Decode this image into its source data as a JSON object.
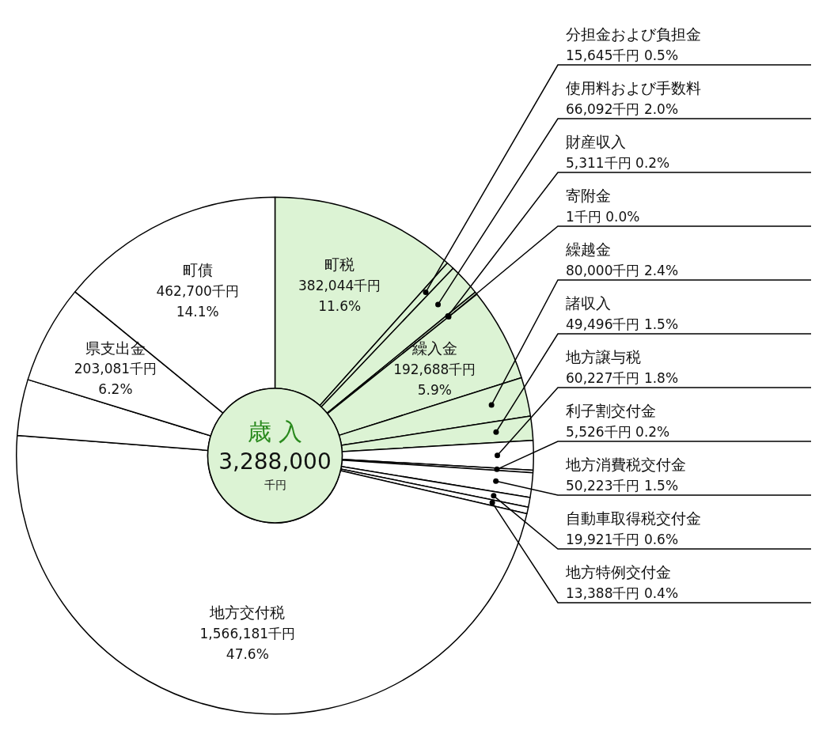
{
  "chart_data": {
    "type": "donut",
    "categories": [
      "町税",
      "分担金および負担金",
      "使用料および手数料",
      "財産収入",
      "寄附金",
      "繰入金",
      "繰越金",
      "諸収入",
      "地方譲与税",
      "利子割交付金",
      "地方消費税交付金",
      "自動車取得税交付金",
      "地方特例交付金",
      "地方交付税",
      null,
      null,
      "県支出金",
      "町債"
    ],
    "values": [
      382044,
      15645,
      66092,
      5311,
      1,
      192688,
      80000,
      49496,
      60227,
      5526,
      50223,
      19921,
      13388,
      1566181,
      null,
      115476,
      203081,
      462700
    ],
    "colors": [
      "#dcf3d4",
      "#dcf3d4",
      "#dcf3d4",
      "#dcf3d4",
      "#dcf3d4",
      "#dcf3d4",
      "#dcf3d4",
      "#dcf3d4",
      "#ffffff",
      "#ffffff",
      "#ffffff",
      "#ffffff",
      "#ffffff",
      "#ffffff",
      "#ffffff",
      "#ffffff",
      "#ffffff",
      "#ffffff"
    ],
    "value_labels": [
      "382,044千円 11.6%",
      "15,645千円 0.5%",
      "66,092千円 2.0%",
      "5,311千円 0.2%",
      "1千円 0.0%",
      "192,688千円 5.9%",
      "80,000千円 2.4%",
      "49,496千円 1.5%",
      "60,227千円 1.8%",
      "5,526千円 0.2%",
      "50,223千円 1.5%",
      "19,921千円 0.6%",
      "13,388千円 0.4%",
      "1,566,181千円 47.6%",
      null,
      null,
      "203,081千円 6.2%",
      "462,700千円 14.1%"
    ],
    "annotations": [
      "歳 入",
      "3,288,000",
      "千円"
    ],
    "legend": false
  }
}
